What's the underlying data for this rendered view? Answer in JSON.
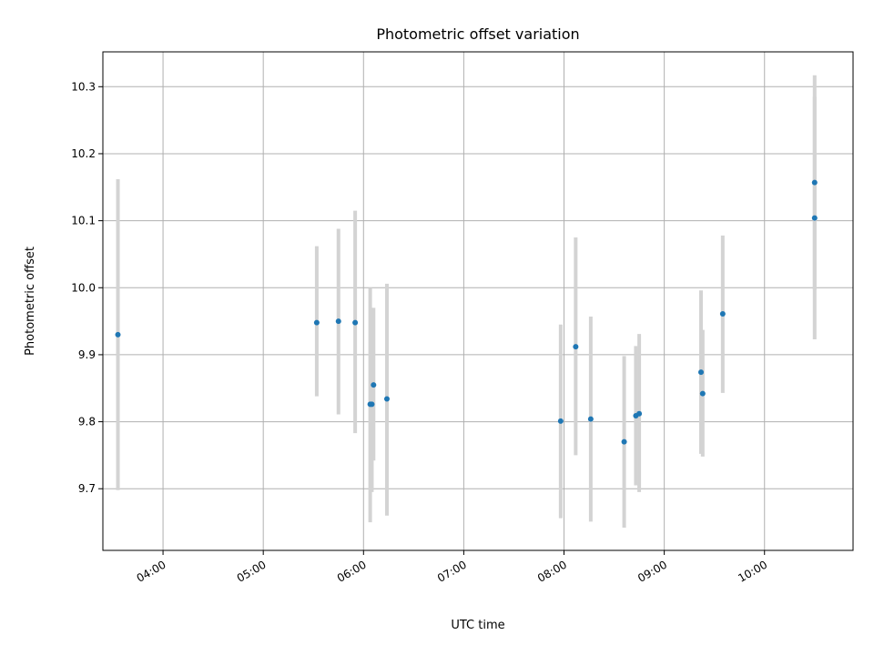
{
  "chart_data": {
    "type": "scatter",
    "title": "Photometric offset variation",
    "xlabel": "UTC time",
    "ylabel": "Photometric offset",
    "grid": true,
    "xlim": [
      "03:24",
      "10:53"
    ],
    "ylim": [
      9.608,
      10.352
    ],
    "x_ticks": [
      "04:00",
      "05:00",
      "06:00",
      "07:00",
      "08:00",
      "09:00",
      "10:00"
    ],
    "y_ticks": [
      9.7,
      9.8,
      9.9,
      10.0,
      10.1,
      10.2,
      10.3
    ],
    "colors": {
      "point": "#1f77b4",
      "error_bar": "#d3d3d3"
    },
    "points": [
      {
        "time": "03:33",
        "value": 9.93,
        "err_low": 9.698,
        "err_high": 10.162
      },
      {
        "time": "05:32",
        "value": 9.948,
        "err_low": 9.838,
        "err_high": 10.062
      },
      {
        "time": "05:45",
        "value": 9.95,
        "err_low": 9.811,
        "err_high": 10.088
      },
      {
        "time": "05:55",
        "value": 9.948,
        "err_low": 9.783,
        "err_high": 10.115
      },
      {
        "time": "06:04",
        "value": 9.826,
        "err_low": 9.65,
        "err_high": 10.0
      },
      {
        "time": "06:05",
        "value": 9.826,
        "err_low": 9.695,
        "err_high": 9.97
      },
      {
        "time": "06:06",
        "value": 9.855,
        "err_low": 9.742,
        "err_high": 9.97
      },
      {
        "time": "06:14",
        "value": 9.834,
        "err_low": 9.66,
        "err_high": 10.006
      },
      {
        "time": "07:58",
        "value": 9.801,
        "err_low": 9.656,
        "err_high": 9.945
      },
      {
        "time": "08:07",
        "value": 9.912,
        "err_low": 9.75,
        "err_high": 10.075
      },
      {
        "time": "08:16",
        "value": 9.804,
        "err_low": 9.651,
        "err_high": 9.957
      },
      {
        "time": "08:36",
        "value": 9.77,
        "err_low": 9.642,
        "err_high": 9.898
      },
      {
        "time": "08:43",
        "value": 9.809,
        "err_low": 9.705,
        "err_high": 9.913
      },
      {
        "time": "08:45",
        "value": 9.812,
        "err_low": 9.695,
        "err_high": 9.931
      },
      {
        "time": "09:22",
        "value": 9.874,
        "err_low": 9.752,
        "err_high": 9.996
      },
      {
        "time": "09:23",
        "value": 9.842,
        "err_low": 9.748,
        "err_high": 9.937
      },
      {
        "time": "09:35",
        "value": 9.961,
        "err_low": 9.843,
        "err_high": 10.078
      },
      {
        "time": "10:30",
        "value": 10.104,
        "err_low": 9.923,
        "err_high": 10.285
      },
      {
        "time": "10:30",
        "value": 10.157,
        "err_low": 9.997,
        "err_high": 10.317
      }
    ]
  }
}
